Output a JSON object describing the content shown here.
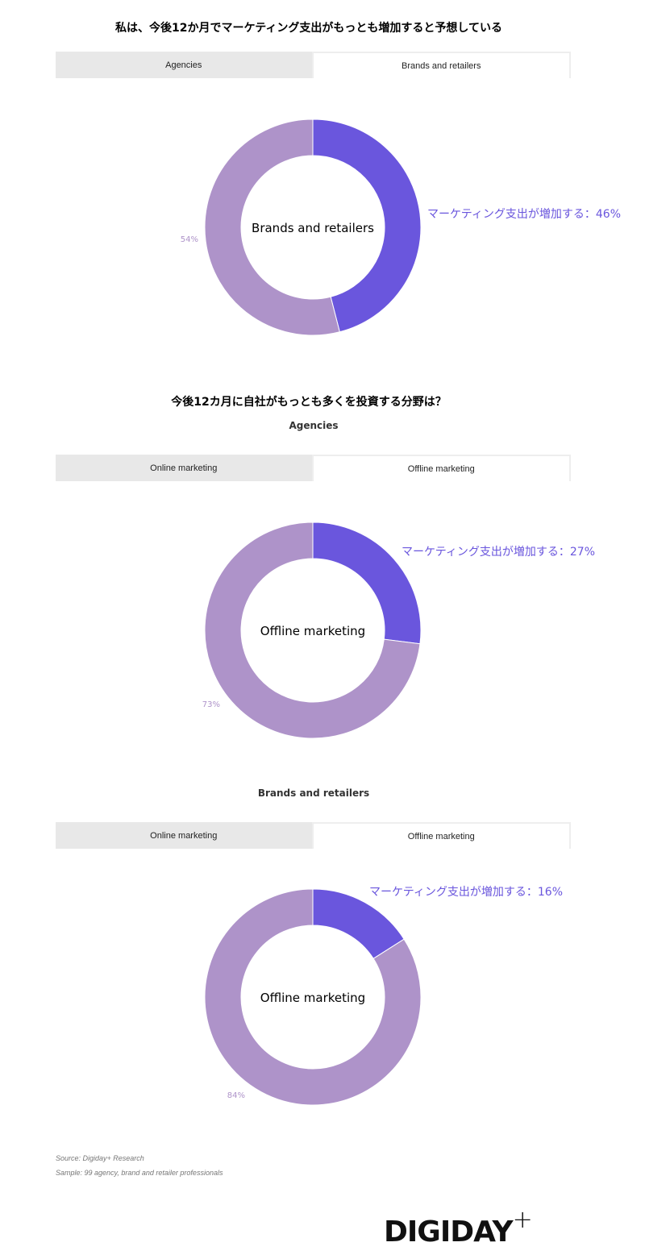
{
  "colors": {
    "increase": "#6a56dd",
    "other": "#ae93c9"
  },
  "title1": "私は、今後12か月でマーケティング支出がもっとも増加すると予想している",
  "tabs1": [
    "Agencies",
    "Brands and retailers"
  ],
  "title2": "今後12カ月に自社がもっとも多くを投資する分野は？",
  "sub_agencies": "Agencies",
  "tabs2": [
    "Online marketing",
    "Offline marketing"
  ],
  "sub_brands": "Brands and retailers",
  "tabs3": [
    "Online marketing",
    "Offline marketing"
  ],
  "chart_data": [
    {
      "type": "pie",
      "donut": true,
      "center_label": "Brands and retailers",
      "slices": [
        {
          "label": "マーケティング支出が増加する：46%",
          "value": 46
        },
        {
          "label": "54%",
          "value": 54
        }
      ]
    },
    {
      "type": "pie",
      "donut": true,
      "center_label": "Offline marketing",
      "slices": [
        {
          "label": "マーケティング支出が増加する：27%",
          "value": 27
        },
        {
          "label": "73%",
          "value": 73
        }
      ]
    },
    {
      "type": "pie",
      "donut": true,
      "center_label": "Offline marketing",
      "slices": [
        {
          "label": "マーケティング支出が増加する：16%",
          "value": 16
        },
        {
          "label": "84%",
          "value": 84
        }
      ]
    }
  ],
  "footer": {
    "source": "Source: Digiday+ Research",
    "sample": "Sample: 99 agency, brand and retailer professionals"
  },
  "logo": {
    "text": "DIGIDAY",
    "plus": "+"
  }
}
